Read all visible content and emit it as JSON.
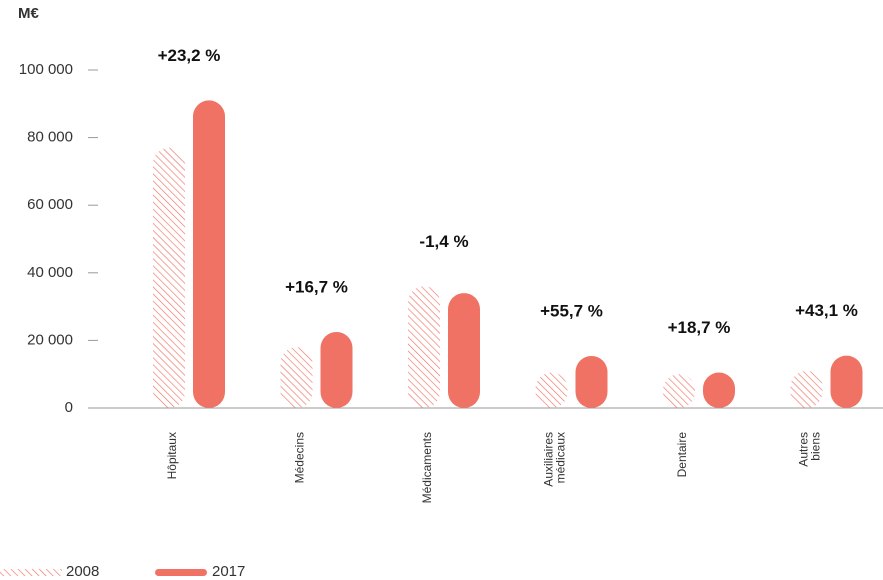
{
  "chart_data": {
    "type": "bar",
    "y_label": "M€",
    "categories": [
      "Hôpitaux",
      "Médecins",
      "Médicaments",
      "Auxiliaires médicaux",
      "Dentaire",
      "Autres biens"
    ],
    "series": [
      {
        "name": "2008",
        "color": "#f07264",
        "pattern": "hatch",
        "values": [
          77000,
          18000,
          36000,
          10500,
          10000,
          11000
        ]
      },
      {
        "name": "2017",
        "color": "#f07264",
        "pattern": "solid",
        "values": [
          91000,
          22500,
          34000,
          15400,
          10500,
          15500
        ]
      }
    ],
    "annotations": [
      "+23,2 %",
      "+16,7 %",
      "-1,4 %",
      "+55,7 %",
      "+18,7 %",
      "+43,1 %"
    ],
    "ylim": [
      0,
      100000
    ],
    "yticks": [
      {
        "value": 0,
        "label": "0"
      },
      {
        "value": 20000,
        "label": "20 000"
      },
      {
        "value": 40000,
        "label": "40 000"
      },
      {
        "value": 60000,
        "label": "60 000"
      },
      {
        "value": 80000,
        "label": "80 000"
      },
      {
        "value": 100000,
        "label": "100 000"
      }
    ]
  }
}
